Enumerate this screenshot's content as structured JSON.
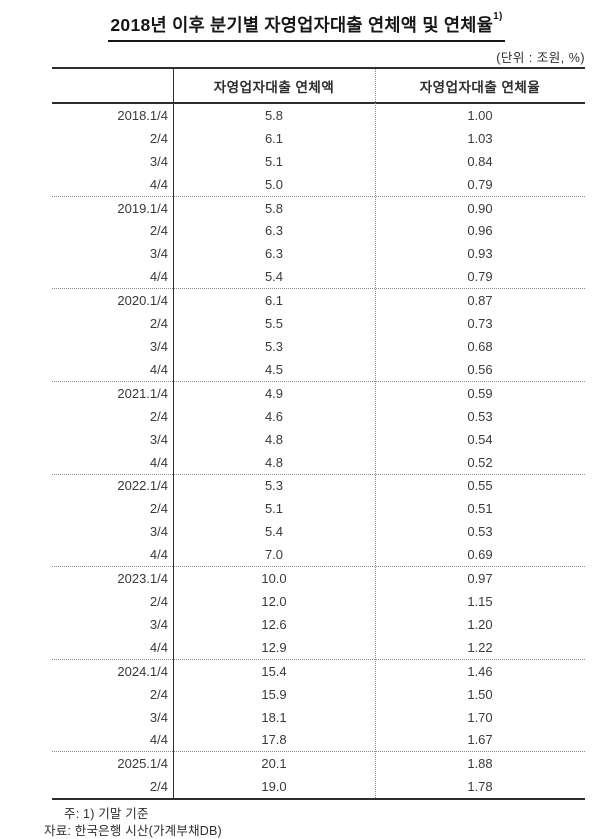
{
  "title": {
    "text": "2018년 이후 분기별 자영업자대출 연체액 및 연체율",
    "superscript": "1)"
  },
  "unit_label": "(단위 : 조원, %)",
  "table": {
    "headers": [
      "",
      "자영업자대출 연체액",
      "자영업자대출 연체율"
    ],
    "rows": [
      {
        "period": "2018.1/4",
        "amount": "5.8",
        "rate": "1.00"
      },
      {
        "period": "2/4",
        "amount": "6.1",
        "rate": "1.03"
      },
      {
        "period": "3/4",
        "amount": "5.1",
        "rate": "0.84"
      },
      {
        "period": "4/4",
        "amount": "5.0",
        "rate": "0.79"
      },
      {
        "period": "2019.1/4",
        "amount": "5.8",
        "rate": "0.90"
      },
      {
        "period": "2/4",
        "amount": "6.3",
        "rate": "0.96"
      },
      {
        "period": "3/4",
        "amount": "6.3",
        "rate": "0.93"
      },
      {
        "period": "4/4",
        "amount": "5.4",
        "rate": "0.79"
      },
      {
        "period": "2020.1/4",
        "amount": "6.1",
        "rate": "0.87"
      },
      {
        "period": "2/4",
        "amount": "5.5",
        "rate": "0.73"
      },
      {
        "period": "3/4",
        "amount": "5.3",
        "rate": "0.68"
      },
      {
        "period": "4/4",
        "amount": "4.5",
        "rate": "0.56"
      },
      {
        "period": "2021.1/4",
        "amount": "4.9",
        "rate": "0.59"
      },
      {
        "period": "2/4",
        "amount": "4.6",
        "rate": "0.53"
      },
      {
        "period": "3/4",
        "amount": "4.8",
        "rate": "0.54"
      },
      {
        "period": "4/4",
        "amount": "4.8",
        "rate": "0.52"
      },
      {
        "period": "2022.1/4",
        "amount": "5.3",
        "rate": "0.55"
      },
      {
        "period": "2/4",
        "amount": "5.1",
        "rate": "0.51"
      },
      {
        "period": "3/4",
        "amount": "5.4",
        "rate": "0.53"
      },
      {
        "period": "4/4",
        "amount": "7.0",
        "rate": "0.69"
      },
      {
        "period": "2023.1/4",
        "amount": "10.0",
        "rate": "0.97"
      },
      {
        "period": "2/4",
        "amount": "12.0",
        "rate": "1.15"
      },
      {
        "period": "3/4",
        "amount": "12.6",
        "rate": "1.20"
      },
      {
        "period": "4/4",
        "amount": "12.9",
        "rate": "1.22"
      },
      {
        "period": "2024.1/4",
        "amount": "15.4",
        "rate": "1.46"
      },
      {
        "period": "2/4",
        "amount": "15.9",
        "rate": "1.50"
      },
      {
        "period": "3/4",
        "amount": "18.1",
        "rate": "1.70"
      },
      {
        "period": "4/4",
        "amount": "17.8",
        "rate": "1.67"
      },
      {
        "period": "2025.1/4",
        "amount": "20.1",
        "rate": "1.88"
      },
      {
        "period": "2/4",
        "amount": "19.0",
        "rate": "1.78"
      }
    ]
  },
  "footnotes": {
    "note": "주: 1) 기말 기준",
    "source": "자료: 한국은행 시산(가계부채DB)"
  }
}
